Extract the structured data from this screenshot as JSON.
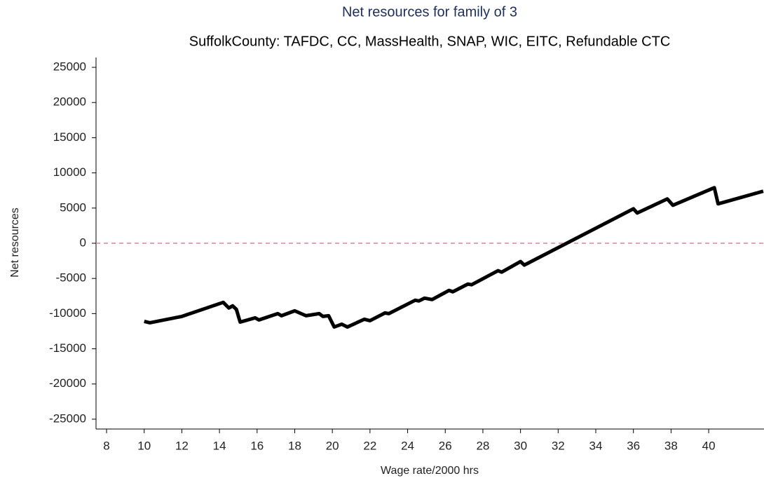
{
  "chart_data": {
    "type": "line",
    "title": "Net resources for family of 3",
    "subtitle": "SuffolkCounty: TAFDC, CC, MassHealth, SNAP, WIC, EITC, Refundable CTC",
    "x_label": "Wage rate/2000 hrs",
    "y_label": "Net resources",
    "x": [
      10,
      10.3,
      12,
      14.2,
      14.5,
      14.7,
      14.9,
      15.1,
      15.9,
      16.1,
      17.1,
      17.3,
      18.0,
      18.6,
      19.3,
      19.5,
      19.8,
      20.1,
      20.5,
      20.8,
      21.7,
      22.0,
      22.8,
      23.0,
      24.4,
      24.6,
      24.9,
      25.3,
      26.2,
      26.4,
      27.2,
      27.4,
      28.8,
      29.0,
      30.0,
      30.2,
      36.0,
      36.2,
      37.8,
      38.1,
      40.3,
      40.5,
      42.9
    ],
    "series": [
      {
        "name": "Net resources",
        "color": "#000000",
        "values": [
          -11100,
          -11300,
          -10400,
          -8400,
          -9200,
          -8900,
          -9400,
          -11200,
          -10600,
          -10900,
          -10000,
          -10300,
          -9600,
          -10300,
          -10000,
          -10400,
          -10300,
          -11900,
          -11500,
          -11900,
          -10800,
          -11000,
          -9900,
          -10000,
          -8100,
          -8200,
          -7800,
          -8000,
          -6700,
          -6900,
          -5800,
          -5900,
          -3900,
          -4100,
          -2600,
          -3100,
          4900,
          4300,
          6300,
          5400,
          7900,
          5600,
          7400
        ]
      }
    ],
    "reference_line": {
      "value": 0,
      "color": "#d9869a"
    },
    "xlim": [
      7.44,
      42.94
    ],
    "ylim": [
      -26400,
      26400
    ],
    "xticks": [
      8,
      10,
      12,
      14,
      16,
      18,
      20,
      22,
      24,
      26,
      28,
      30,
      32,
      34,
      36,
      38,
      40
    ],
    "yticks": [
      -25000,
      -20000,
      -15000,
      -10000,
      -5000,
      0,
      5000,
      10000,
      15000,
      20000,
      25000
    ]
  }
}
